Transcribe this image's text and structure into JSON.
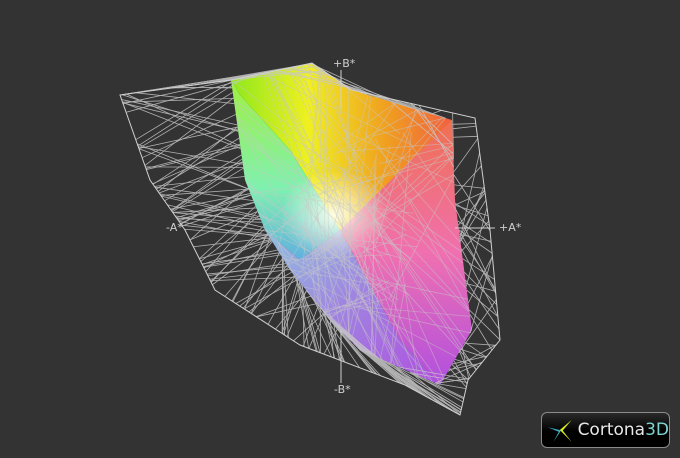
{
  "viewer": {
    "axes": {
      "plus_b": "+B*",
      "minus_b": "-B*",
      "plus_a": "+A*",
      "minus_a": "-A*"
    },
    "logo": {
      "name": "Cortona",
      "suffix": "3D"
    },
    "colors": {
      "background": "#333333",
      "wireframe": "#c8c8c8",
      "logo_accent": "#7fd3d0"
    }
  }
}
